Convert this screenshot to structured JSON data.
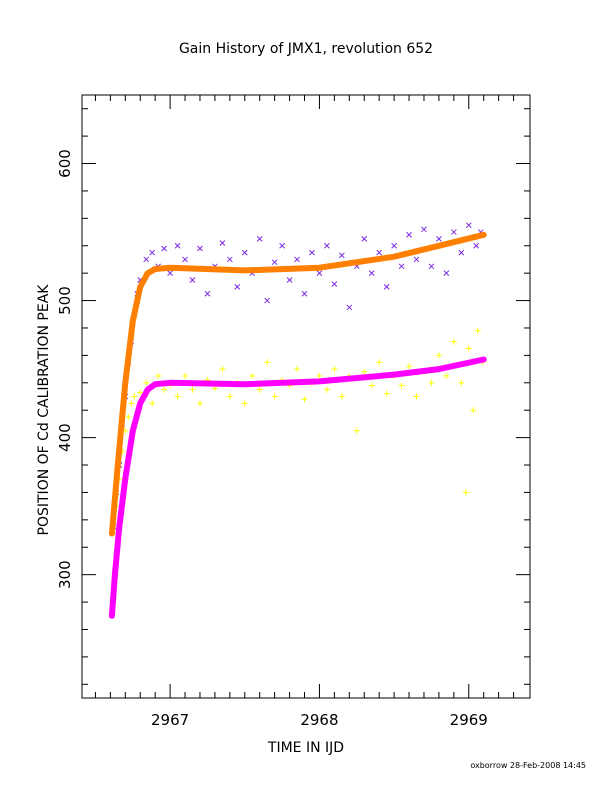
{
  "chart_data": {
    "type": "scatter",
    "title": "Gain History of JMX1, revolution 652",
    "xlabel": "TIME IN IJD",
    "ylabel": "POSITION OF Cd CALIBRATION PEAK",
    "footer": "oxborrow 28-Feb-2008 14:45",
    "xlim": [
      2966.41,
      2969.41
    ],
    "ylim": [
      210,
      650
    ],
    "xticks": [
      {
        "value": 2967,
        "label": "2967"
      },
      {
        "value": 2968,
        "label": "2968"
      },
      {
        "value": 2969,
        "label": "2969"
      }
    ],
    "yticks": [
      {
        "value": 300,
        "label": "300"
      },
      {
        "value": 400,
        "label": "400"
      },
      {
        "value": 500,
        "label": "500"
      },
      {
        "value": 600,
        "label": "600"
      }
    ],
    "grid": false,
    "colors": {
      "purple_points": "#7b2be0",
      "orange_fit": "#ff8000",
      "yellow_points": "#ffff00",
      "magenta_fit": "#ff00ff"
    },
    "series": [
      {
        "marker": "x",
        "color": "#7b2be0",
        "points": [
          [
            2966.62,
            335
          ],
          [
            2966.64,
            360
          ],
          [
            2966.66,
            380
          ],
          [
            2966.68,
            410
          ],
          [
            2966.7,
            430
          ],
          [
            2966.72,
            455
          ],
          [
            2966.74,
            470
          ],
          [
            2966.76,
            490
          ],
          [
            2966.78,
            505
          ],
          [
            2966.8,
            515
          ],
          [
            2966.84,
            530
          ],
          [
            2966.88,
            535
          ],
          [
            2966.92,
            525
          ],
          [
            2966.96,
            538
          ],
          [
            2967.0,
            520
          ],
          [
            2967.05,
            540
          ],
          [
            2967.1,
            530
          ],
          [
            2967.15,
            515
          ],
          [
            2967.2,
            538
          ],
          [
            2967.25,
            505
          ],
          [
            2967.3,
            525
          ],
          [
            2967.35,
            542
          ],
          [
            2967.4,
            530
          ],
          [
            2967.45,
            510
          ],
          [
            2967.5,
            535
          ],
          [
            2967.55,
            520
          ],
          [
            2967.6,
            545
          ],
          [
            2967.65,
            500
          ],
          [
            2967.7,
            528
          ],
          [
            2967.75,
            540
          ],
          [
            2967.8,
            515
          ],
          [
            2967.85,
            530
          ],
          [
            2967.9,
            505
          ],
          [
            2967.95,
            535
          ],
          [
            2968.0,
            520
          ],
          [
            2968.05,
            540
          ],
          [
            2968.1,
            512
          ],
          [
            2968.15,
            533
          ],
          [
            2968.2,
            495
          ],
          [
            2968.25,
            525
          ],
          [
            2968.3,
            545
          ],
          [
            2968.35,
            520
          ],
          [
            2968.4,
            535
          ],
          [
            2968.45,
            510
          ],
          [
            2968.5,
            540
          ],
          [
            2968.55,
            525
          ],
          [
            2968.6,
            548
          ],
          [
            2968.65,
            530
          ],
          [
            2968.7,
            552
          ],
          [
            2968.75,
            525
          ],
          [
            2968.8,
            545
          ],
          [
            2968.85,
            520
          ],
          [
            2968.9,
            550
          ],
          [
            2968.95,
            535
          ],
          [
            2969.0,
            555
          ],
          [
            2969.05,
            540
          ],
          [
            2969.08,
            550
          ]
        ]
      },
      {
        "marker": "+",
        "color": "#ffff00",
        "points": [
          [
            2966.62,
            330
          ],
          [
            2966.64,
            350
          ],
          [
            2966.66,
            370
          ],
          [
            2966.68,
            390
          ],
          [
            2966.7,
            405
          ],
          [
            2966.72,
            415
          ],
          [
            2966.74,
            425
          ],
          [
            2966.76,
            430
          ],
          [
            2966.8,
            433
          ],
          [
            2966.84,
            440
          ],
          [
            2966.88,
            425
          ],
          [
            2966.92,
            445
          ],
          [
            2966.96,
            435
          ],
          [
            2967.0,
            438
          ],
          [
            2967.05,
            430
          ],
          [
            2967.1,
            445
          ],
          [
            2967.15,
            435
          ],
          [
            2967.2,
            425
          ],
          [
            2967.25,
            442
          ],
          [
            2967.3,
            436
          ],
          [
            2967.35,
            450
          ],
          [
            2967.4,
            430
          ],
          [
            2967.45,
            440
          ],
          [
            2967.5,
            425
          ],
          [
            2967.55,
            445
          ],
          [
            2967.6,
            435
          ],
          [
            2967.65,
            455
          ],
          [
            2967.7,
            430
          ],
          [
            2967.75,
            442
          ],
          [
            2967.8,
            438
          ],
          [
            2967.85,
            450
          ],
          [
            2967.9,
            428
          ],
          [
            2967.95,
            440
          ],
          [
            2968.0,
            445
          ],
          [
            2968.05,
            435
          ],
          [
            2968.1,
            450
          ],
          [
            2968.15,
            430
          ],
          [
            2968.2,
            445
          ],
          [
            2968.25,
            405
          ],
          [
            2968.3,
            448
          ],
          [
            2968.35,
            438
          ],
          [
            2968.4,
            455
          ],
          [
            2968.45,
            432
          ],
          [
            2968.5,
            445
          ],
          [
            2968.55,
            438
          ],
          [
            2968.6,
            452
          ],
          [
            2968.65,
            430
          ],
          [
            2968.7,
            448
          ],
          [
            2968.75,
            440
          ],
          [
            2968.8,
            460
          ],
          [
            2968.85,
            445
          ],
          [
            2968.9,
            470
          ],
          [
            2968.95,
            440
          ],
          [
            2968.98,
            360
          ],
          [
            2969.0,
            465
          ],
          [
            2969.03,
            420
          ],
          [
            2969.06,
            478
          ],
          [
            2969.09,
            455
          ]
        ]
      }
    ],
    "fits": [
      {
        "color": "#ff8000",
        "points": [
          [
            2966.61,
            330
          ],
          [
            2966.65,
            380
          ],
          [
            2966.7,
            440
          ],
          [
            2966.75,
            485
          ],
          [
            2966.8,
            510
          ],
          [
            2966.85,
            520
          ],
          [
            2966.9,
            523
          ],
          [
            2967.0,
            524
          ],
          [
            2967.5,
            522
          ],
          [
            2968.0,
            524
          ],
          [
            2968.5,
            532
          ],
          [
            2968.8,
            540
          ],
          [
            2969.1,
            548
          ]
        ]
      },
      {
        "color": "#ff00ff",
        "points": [
          [
            2966.61,
            270
          ],
          [
            2966.63,
            300
          ],
          [
            2966.66,
            335
          ],
          [
            2966.7,
            370
          ],
          [
            2966.75,
            405
          ],
          [
            2966.8,
            425
          ],
          [
            2966.85,
            435
          ],
          [
            2966.9,
            439
          ],
          [
            2967.0,
            440
          ],
          [
            2967.5,
            439
          ],
          [
            2968.0,
            441
          ],
          [
            2968.5,
            446
          ],
          [
            2968.8,
            450
          ],
          [
            2969.1,
            457
          ]
        ]
      }
    ]
  }
}
